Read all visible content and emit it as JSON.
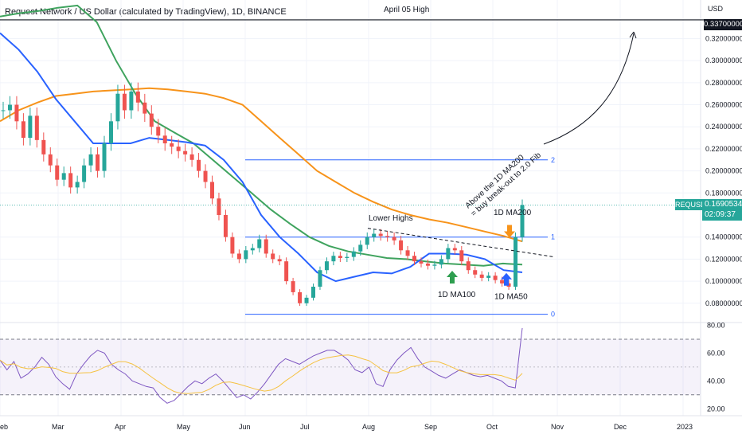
{
  "chart_data": {
    "title": "Request Network / US Dollar (calculated by TradingView), 1D, BINANCE",
    "type": "line",
    "currency": "USD",
    "x_ticks": [
      "eb",
      "Mar",
      "Apr",
      "May",
      "Jun",
      "Jul",
      "Aug",
      "Sep",
      "Oct",
      "Nov",
      "Dec",
      "2023"
    ],
    "price_axis": {
      "ylim": [
        0.0625,
        0.355
      ],
      "ticks": [
        "0.32000000",
        "0.30000000",
        "0.28000000",
        "0.26000000",
        "0.24000000",
        "0.22000000",
        "0.20000000",
        "0.18000000",
        "0.14000000",
        "0.12000000",
        "0.10000000",
        "0.08000000"
      ],
      "tick_values": [
        0.32,
        0.3,
        0.28,
        0.26,
        0.24,
        0.22,
        0.2,
        0.18,
        0.14,
        0.12,
        0.1,
        0.08
      ]
    },
    "rsi_axis": {
      "ylim": [
        15,
        82
      ],
      "ticks": [
        "80.00",
        "60.00",
        "40.00",
        "20.00"
      ],
      "tick_values": [
        80,
        60,
        40,
        20
      ],
      "band": [
        30,
        70
      ],
      "mid": 50
    },
    "current_price": {
      "symbol": "REQUSD",
      "value": "0.16905341",
      "timer": "02:09:37"
    },
    "april_high": {
      "label": "April 05 High",
      "value": "0.33700000",
      "price": 0.337
    },
    "fib_levels": [
      {
        "label": "2",
        "price": 0.21
      },
      {
        "label": "1",
        "price": 0.14
      },
      {
        "label": "0",
        "price": 0.07
      }
    ],
    "price_series": [
      0.255,
      0.26,
      0.245,
      0.23,
      0.25,
      0.228,
      0.215,
      0.205,
      0.192,
      0.198,
      0.185,
      0.19,
      0.205,
      0.215,
      0.2,
      0.225,
      0.245,
      0.27,
      0.255,
      0.272,
      0.262,
      0.252,
      0.24,
      0.232,
      0.225,
      0.222,
      0.218,
      0.215,
      0.21,
      0.2,
      0.19,
      0.175,
      0.16,
      0.14,
      0.125,
      0.12,
      0.128,
      0.13,
      0.138,
      0.125,
      0.12,
      0.118,
      0.1,
      0.09,
      0.08,
      0.085,
      0.095,
      0.11,
      0.118,
      0.123,
      0.121,
      0.122,
      0.127,
      0.133,
      0.14,
      0.143,
      0.141,
      0.14,
      0.137,
      0.128,
      0.123,
      0.118,
      0.116,
      0.114,
      0.115,
      0.12,
      0.13,
      0.128,
      0.118,
      0.11,
      0.106,
      0.103,
      0.105,
      0.101,
      0.098,
      0.095,
      0.14,
      0.169
    ],
    "rsi_series": [
      55,
      48,
      54,
      42,
      45,
      50,
      57,
      52,
      43,
      38,
      34,
      45,
      52,
      58,
      62,
      60,
      52,
      48,
      45,
      40,
      38,
      36,
      35,
      28,
      24,
      26,
      31,
      36,
      40,
      38,
      42,
      45,
      40,
      34,
      28,
      30,
      27,
      32,
      38,
      45,
      52,
      56,
      54,
      52,
      55,
      58,
      60,
      62,
      62,
      59,
      55,
      48,
      46,
      50,
      38,
      36,
      48,
      55,
      60,
      64,
      56,
      50,
      47,
      44,
      42,
      45,
      48,
      46,
      44,
      43,
      44,
      42,
      40,
      36,
      35,
      78
    ],
    "ma_series": [
      {
        "name": "1D MA200",
        "color": "#f7931a",
        "values": [
          0.245,
          0.255,
          0.262,
          0.268,
          0.27,
          0.272,
          0.273,
          0.274,
          0.275,
          0.274,
          0.272,
          0.27,
          0.266,
          0.26,
          0.245,
          0.23,
          0.215,
          0.2,
          0.19,
          0.18,
          0.172,
          0.165,
          0.16,
          0.156,
          0.153,
          0.149,
          0.145,
          0.141,
          0.136
        ]
      },
      {
        "name": "1D MA100",
        "color": "#3fa35e",
        "values": [
          0.34,
          0.343,
          0.345,
          0.348,
          0.35,
          0.335,
          0.3,
          0.27,
          0.245,
          0.235,
          0.225,
          0.21,
          0.195,
          0.18,
          0.165,
          0.152,
          0.14,
          0.132,
          0.127,
          0.124,
          0.121,
          0.12,
          0.118,
          0.116,
          0.115,
          0.114,
          0.116,
          0.115
        ]
      },
      {
        "name": "1D MA50",
        "color": "#2962ff",
        "values": [
          0.325,
          0.31,
          0.29,
          0.265,
          0.245,
          0.225,
          0.225,
          0.225,
          0.23,
          0.228,
          0.226,
          0.223,
          0.21,
          0.19,
          0.16,
          0.14,
          0.125,
          0.108,
          0.1,
          0.104,
          0.108,
          0.107,
          0.113,
          0.125,
          0.125,
          0.124,
          0.12,
          0.11,
          0.108
        ]
      }
    ],
    "annotations": {
      "lower_highs": "Lower Highs",
      "ma200": "1D MA200",
      "ma100": "1D MA100",
      "ma50": "1D MA50",
      "breakout_line1": "Above the 1D MA200",
      "breakout_line2": "= buy break-out to 2.0 Fib"
    }
  },
  "colors": {
    "up": "#26a69a",
    "down": "#ef5350",
    "rsi": "#7e57c2",
    "rsi_ma": "#f5c242",
    "fib": "#2962ff"
  }
}
